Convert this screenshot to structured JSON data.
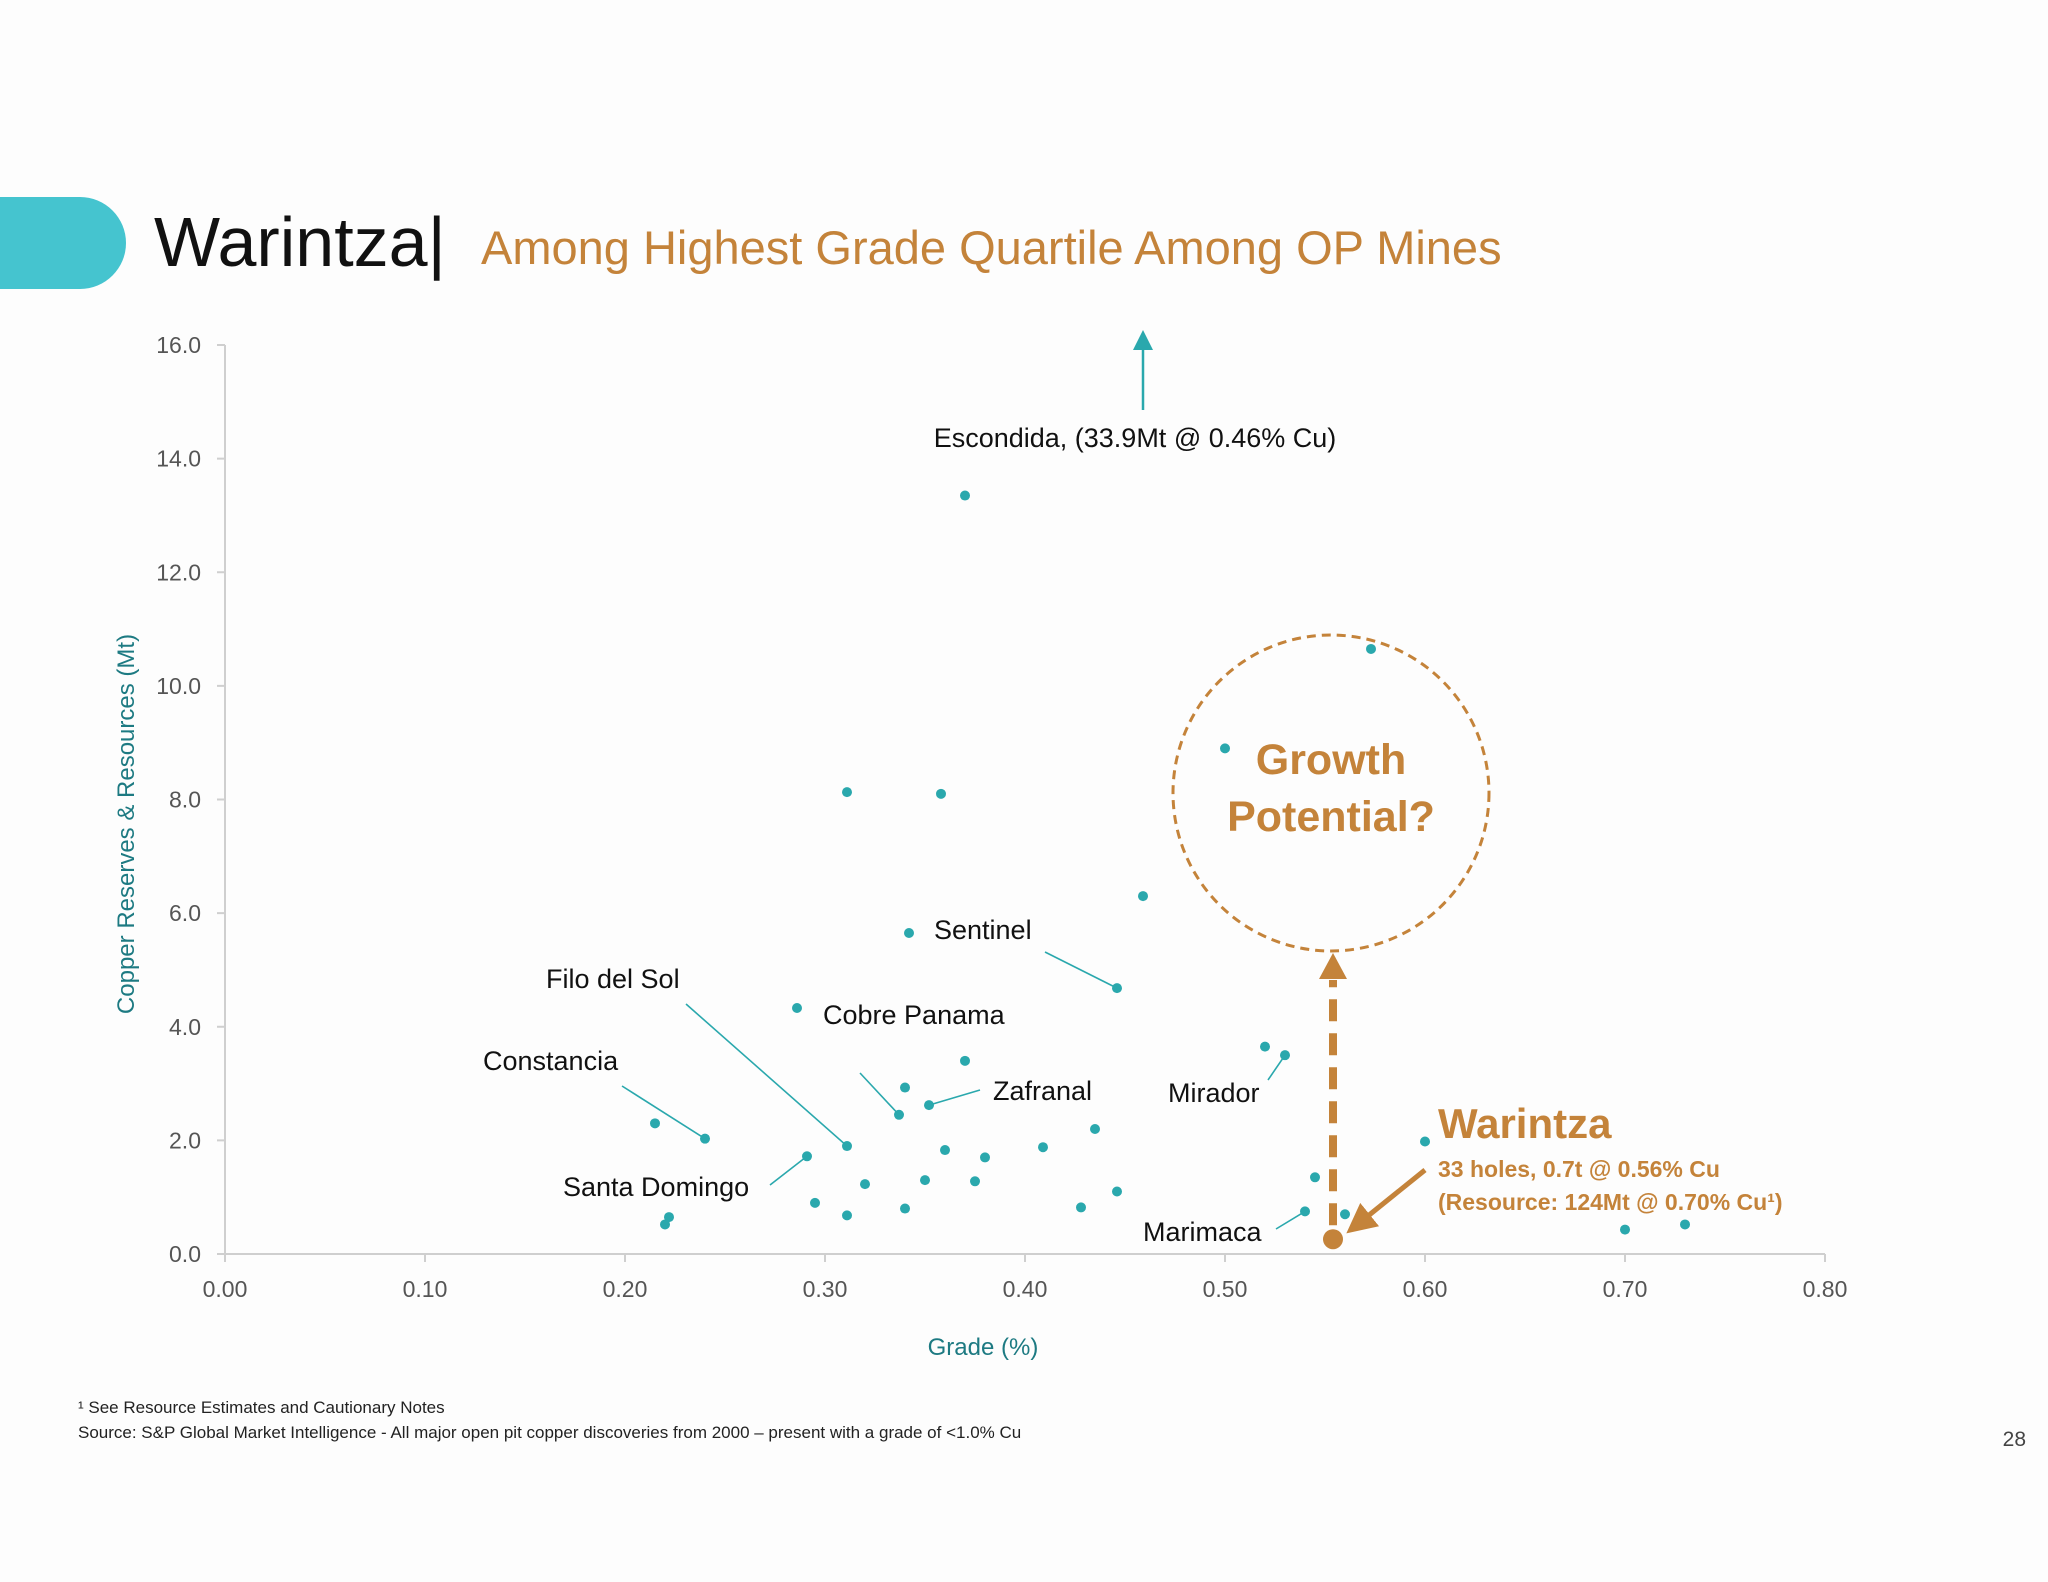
{
  "header": {
    "title": "Warintza|",
    "subtitle": "Among Highest Grade Quartile Among OP Mines"
  },
  "footer": {
    "note": "¹ See Resource Estimates and Cautionary Notes",
    "source": "Source: S&P Global Market Intelligence - All major open pit copper discoveries from 2000 – present with a grade of <1.0% Cu",
    "page_number": "28"
  },
  "colors": {
    "accent_teal": "#45c4cf",
    "point_teal": "#2aa8ad",
    "axis_label_teal": "#1d7a82",
    "highlight_orange": "#c4833a"
  },
  "chart_data": {
    "type": "scatter",
    "xlabel": "Grade (%)",
    "ylabel": "Copper Reserves & Resources (Mt)",
    "xlim": [
      0.0,
      0.8
    ],
    "ylim": [
      0.0,
      16.0
    ],
    "x_ticks": [
      "0.00",
      "0.10",
      "0.20",
      "0.30",
      "0.40",
      "0.50",
      "0.60",
      "0.70",
      "0.80"
    ],
    "y_ticks": [
      "0.0",
      "2.0",
      "4.0",
      "6.0",
      "8.0",
      "10.0",
      "12.0",
      "14.0",
      "16.0"
    ],
    "grid": false,
    "points": [
      {
        "x": 0.37,
        "y": 13.35
      },
      {
        "x": 0.573,
        "y": 10.65
      },
      {
        "x": 0.5,
        "y": 8.9
      },
      {
        "x": 0.311,
        "y": 8.13
      },
      {
        "x": 0.358,
        "y": 8.1
      },
      {
        "x": 0.459,
        "y": 6.3
      },
      {
        "x": 0.342,
        "y": 5.65
      },
      {
        "x": 0.446,
        "y": 4.68
      },
      {
        "x": 0.286,
        "y": 4.33
      },
      {
        "x": 0.52,
        "y": 3.65
      },
      {
        "x": 0.53,
        "y": 3.5
      },
      {
        "x": 0.37,
        "y": 3.4
      },
      {
        "x": 0.34,
        "y": 2.93
      },
      {
        "x": 0.352,
        "y": 2.62
      },
      {
        "x": 0.337,
        "y": 2.45
      },
      {
        "x": 0.215,
        "y": 2.3
      },
      {
        "x": 0.435,
        "y": 2.2
      },
      {
        "x": 0.24,
        "y": 2.03
      },
      {
        "x": 0.6,
        "y": 1.98
      },
      {
        "x": 0.311,
        "y": 1.9
      },
      {
        "x": 0.409,
        "y": 1.88
      },
      {
        "x": 0.36,
        "y": 1.83
      },
      {
        "x": 0.38,
        "y": 1.7
      },
      {
        "x": 0.291,
        "y": 1.72
      },
      {
        "x": 0.545,
        "y": 1.35
      },
      {
        "x": 0.35,
        "y": 1.3
      },
      {
        "x": 0.375,
        "y": 1.28
      },
      {
        "x": 0.32,
        "y": 1.23
      },
      {
        "x": 0.446,
        "y": 1.1
      },
      {
        "x": 0.295,
        "y": 0.9
      },
      {
        "x": 0.34,
        "y": 0.8
      },
      {
        "x": 0.428,
        "y": 0.82
      },
      {
        "x": 0.54,
        "y": 0.75
      },
      {
        "x": 0.311,
        "y": 0.68
      },
      {
        "x": 0.56,
        "y": 0.7
      },
      {
        "x": 0.57,
        "y": 0.65
      },
      {
        "x": 0.222,
        "y": 0.65
      },
      {
        "x": 0.22,
        "y": 0.52
      },
      {
        "x": 0.73,
        "y": 0.52
      },
      {
        "x": 0.7,
        "y": 0.43
      }
    ],
    "annotations": [
      {
        "text": "Escondida, (33.9Mt @ 0.46% Cu)",
        "x": 0.459,
        "y": 14.3,
        "arrow": "up"
      },
      {
        "text": "Sentinel",
        "x": 0.446,
        "y": 4.68
      },
      {
        "text": "Filo del Sol",
        "x": 0.311,
        "y": 1.9
      },
      {
        "text": "Cobre Panama",
        "x": 0.337,
        "y": 2.45
      },
      {
        "text": "Constancia",
        "x": 0.24,
        "y": 2.03
      },
      {
        "text": "Zafranal",
        "x": 0.352,
        "y": 2.62
      },
      {
        "text": "Mirador",
        "x": 0.53,
        "y": 3.5
      },
      {
        "text": "Santa Domingo",
        "x": 0.291,
        "y": 1.72
      },
      {
        "text": "Marimaca",
        "x": 0.54,
        "y": 0.75
      }
    ],
    "highlight": {
      "name": "Warintza",
      "x": 0.554,
      "y": 0.26,
      "detail_1": "33 holes, 0.7t @ 0.56% Cu",
      "detail_2": "(Resource: 124Mt @ 0.70% Cu¹)",
      "growth_line_1": "Growth",
      "growth_line_2": "Potential?"
    }
  }
}
